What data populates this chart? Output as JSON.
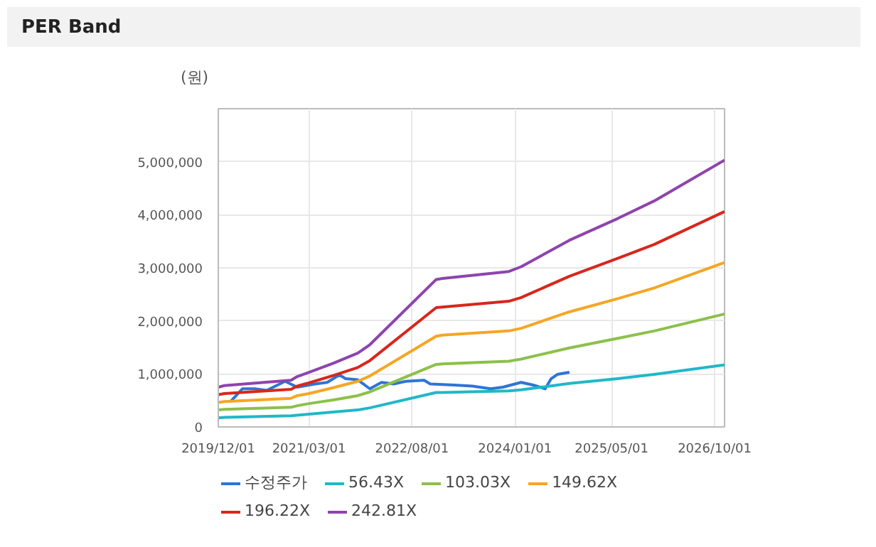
{
  "chart_data": {
    "type": "line",
    "title": "PER Band",
    "ylabel": "(원)",
    "x": [
      "2019-12-01",
      "2020-01-01",
      "2020-12-01",
      "2021-01-01",
      "2021-03-01",
      "2021-07-01",
      "2021-11-01",
      "2022-01-01",
      "2022-12-01",
      "2023-01-01",
      "2023-12-01",
      "2024-02-01",
      "2024-10-01",
      "2025-06-01",
      "2025-12-01",
      "2026-11-20"
    ],
    "series": [
      {
        "name": "수정주가",
        "color": "#2e75d6",
        "x": [
          "2020-02-01",
          "2020-04-01",
          "2020-06-01",
          "2020-08-01",
          "2020-11-01",
          "2021-01-01",
          "2021-04-01",
          "2021-06-01",
          "2021-08-01",
          "2021-09-01",
          "2021-11-01",
          "2022-01-01",
          "2022-03-01",
          "2022-05-01",
          "2022-07-01",
          "2022-10-01",
          "2022-11-01",
          "2023-03-01",
          "2023-06-01",
          "2023-09-01",
          "2023-11-01",
          "2024-02-01",
          "2024-04-01",
          "2024-06-01",
          "2024-07-01",
          "2024-08-01",
          "2024-10-01"
        ],
        "values": [
          480000,
          720000,
          720000,
          690000,
          860000,
          750000,
          810000,
          840000,
          980000,
          910000,
          890000,
          720000,
          840000,
          810000,
          860000,
          880000,
          810000,
          790000,
          770000,
          720000,
          750000,
          840000,
          790000,
          720000,
          910000,
          990000,
          1030000
        ]
      },
      {
        "name": "56.43X",
        "color": "#1fb8c8",
        "values": [
          170000,
          180000,
          210000,
          220000,
          240000,
          280000,
          320000,
          360000,
          650000,
          650000,
          680000,
          700000,
          820000,
          910000,
          990000,
          1170000
        ]
      },
      {
        "name": "103.03X",
        "color": "#8cc04a",
        "values": [
          320000,
          330000,
          370000,
          400000,
          440000,
          510000,
          590000,
          660000,
          1180000,
          1190000,
          1240000,
          1280000,
          1490000,
          1670000,
          1810000,
          2130000
        ]
      },
      {
        "name": "149.62X",
        "color": "#f5a623",
        "values": [
          460000,
          480000,
          540000,
          590000,
          630000,
          740000,
          860000,
          960000,
          1710000,
          1730000,
          1810000,
          1860000,
          2170000,
          2420000,
          2620000,
          3100000
        ]
      },
      {
        "name": "196.22X",
        "color": "#d9261c",
        "values": [
          610000,
          630000,
          710000,
          770000,
          830000,
          970000,
          1120000,
          1250000,
          2250000,
          2260000,
          2370000,
          2440000,
          2840000,
          3180000,
          3440000,
          4060000
        ]
      },
      {
        "name": "242.81X",
        "color": "#8e44ad",
        "values": [
          750000,
          780000,
          880000,
          950000,
          1030000,
          1200000,
          1390000,
          1550000,
          2780000,
          2800000,
          2930000,
          3020000,
          3520000,
          3930000,
          4260000,
          5030000
        ]
      }
    ],
    "xlim": [
      "2019-12-01",
      "2026-11-20"
    ],
    "xticks": [
      {
        "value": "2019-12-01",
        "label": "2019/12/01"
      },
      {
        "value": "2021-03-01",
        "label": "2021/03/01"
      },
      {
        "value": "2022-08-01",
        "label": "2022/08/01"
      },
      {
        "value": "2024-01-01",
        "label": "2024/01/01"
      },
      {
        "value": "2025-05-01",
        "label": "2025/05/01"
      },
      {
        "value": "2026-10-01",
        "label": "2026/10/01"
      }
    ],
    "ylim": [
      0,
      6000000
    ],
    "yticks": [
      0,
      {
        "value": 1000000,
        "label": "1,000,000"
      },
      {
        "value": 2000000,
        "label": "2,000,000"
      },
      {
        "value": 3000000,
        "label": "3,000,000"
      },
      {
        "value": 4000000,
        "label": "4,000,000"
      },
      {
        "value": 5000000,
        "label": "5,000,000"
      }
    ],
    "grid": true,
    "legend": "bottom",
    "marker": "none",
    "line_style": "solid"
  }
}
